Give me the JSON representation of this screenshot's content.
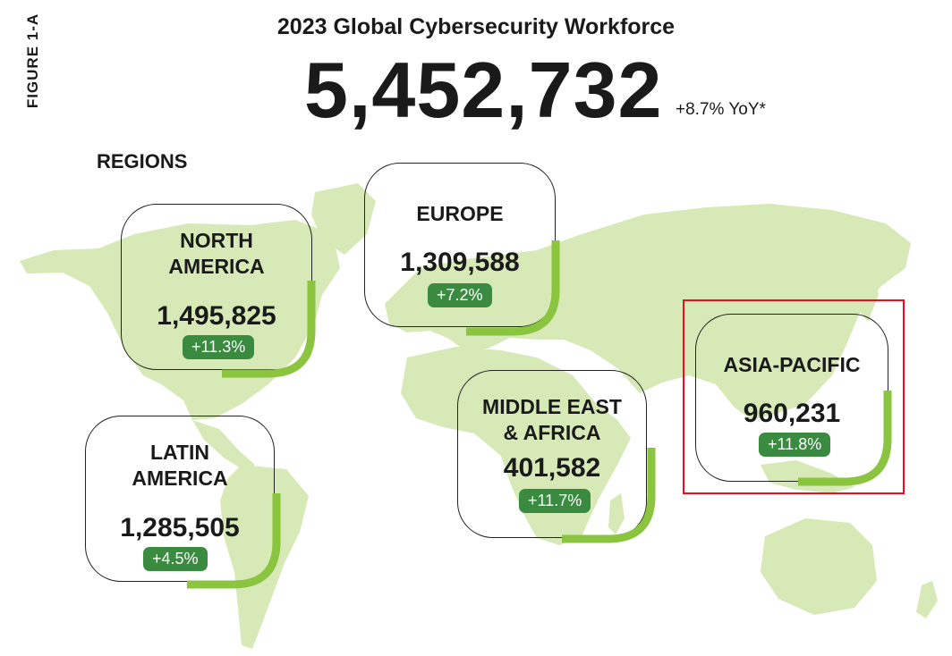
{
  "figure_label": "FIGURE 1-A",
  "title": "2023 Global Cybersecurity Workforce",
  "total": "5,452,732",
  "yoy": "+8.7% YoY*",
  "regions_title": "REGIONS",
  "colors": {
    "map": "#d6e9b6",
    "accent": "#8bc43f",
    "badge": "#3a8b3f",
    "highlight": "#e0131f"
  },
  "regions": [
    {
      "name": "NORTH\nAMERICA",
      "value": "1,495,825",
      "change": "+11.3%"
    },
    {
      "name": "EUROPE",
      "value": "1,309,588",
      "change": "+7.2%"
    },
    {
      "name": "LATIN\nAMERICA",
      "value": "1,285,505",
      "change": "+4.5%"
    },
    {
      "name": "MIDDLE EAST\n& AFRICA",
      "value": "401,582",
      "change": "+11.7%"
    },
    {
      "name": "ASIA-PACIFIC",
      "value": "960,231",
      "change": "+11.8%"
    }
  ]
}
